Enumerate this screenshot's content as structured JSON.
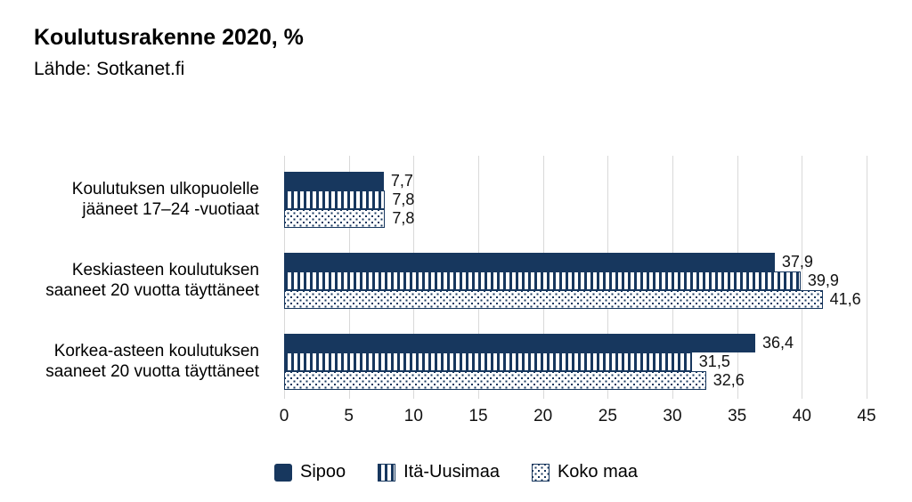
{
  "header": {
    "title": "Koulutusrakenne 2020, %",
    "subtitle": "Lähde: Sotkanet.fi"
  },
  "chart_data": {
    "type": "bar",
    "orientation": "horizontal",
    "title": "Koulutusrakenne 2020, %",
    "source": "Lähde: Sotkanet.fi",
    "xlim": [
      0,
      45
    ],
    "xticks": [
      0,
      5,
      10,
      15,
      20,
      25,
      30,
      35,
      40,
      45
    ],
    "grid": true,
    "legend_position": "bottom",
    "categories": [
      "Koulutuksen ulkopuolelle\njääneet 17–24 -vuotiaat",
      "Keskiasteen koulutuksen\nsaaneet 20 vuotta täyttäneet",
      "Korkea-asteen koulutuksen\nsaaneet 20 vuotta täyttäneet"
    ],
    "series": [
      {
        "name": "Sipoo",
        "pattern": "solid",
        "values": [
          7.7,
          37.9,
          36.4
        ],
        "value_labels": [
          "7,7",
          "37,9",
          "36,4"
        ]
      },
      {
        "name": "Itä-Uusimaa",
        "pattern": "vertical-stripes",
        "values": [
          7.8,
          39.9,
          31.5
        ],
        "value_labels": [
          "7,8",
          "39,9",
          "31,5"
        ]
      },
      {
        "name": "Koko maa",
        "pattern": "dots",
        "values": [
          7.8,
          41.6,
          32.6
        ],
        "value_labels": [
          "7,8",
          "41,6",
          "32,6"
        ]
      }
    ],
    "colors": {
      "navy": "#17375E",
      "gridline": "#D9D9D9",
      "pattern_background": "#FFFFFF",
      "text": "#000000"
    }
  }
}
